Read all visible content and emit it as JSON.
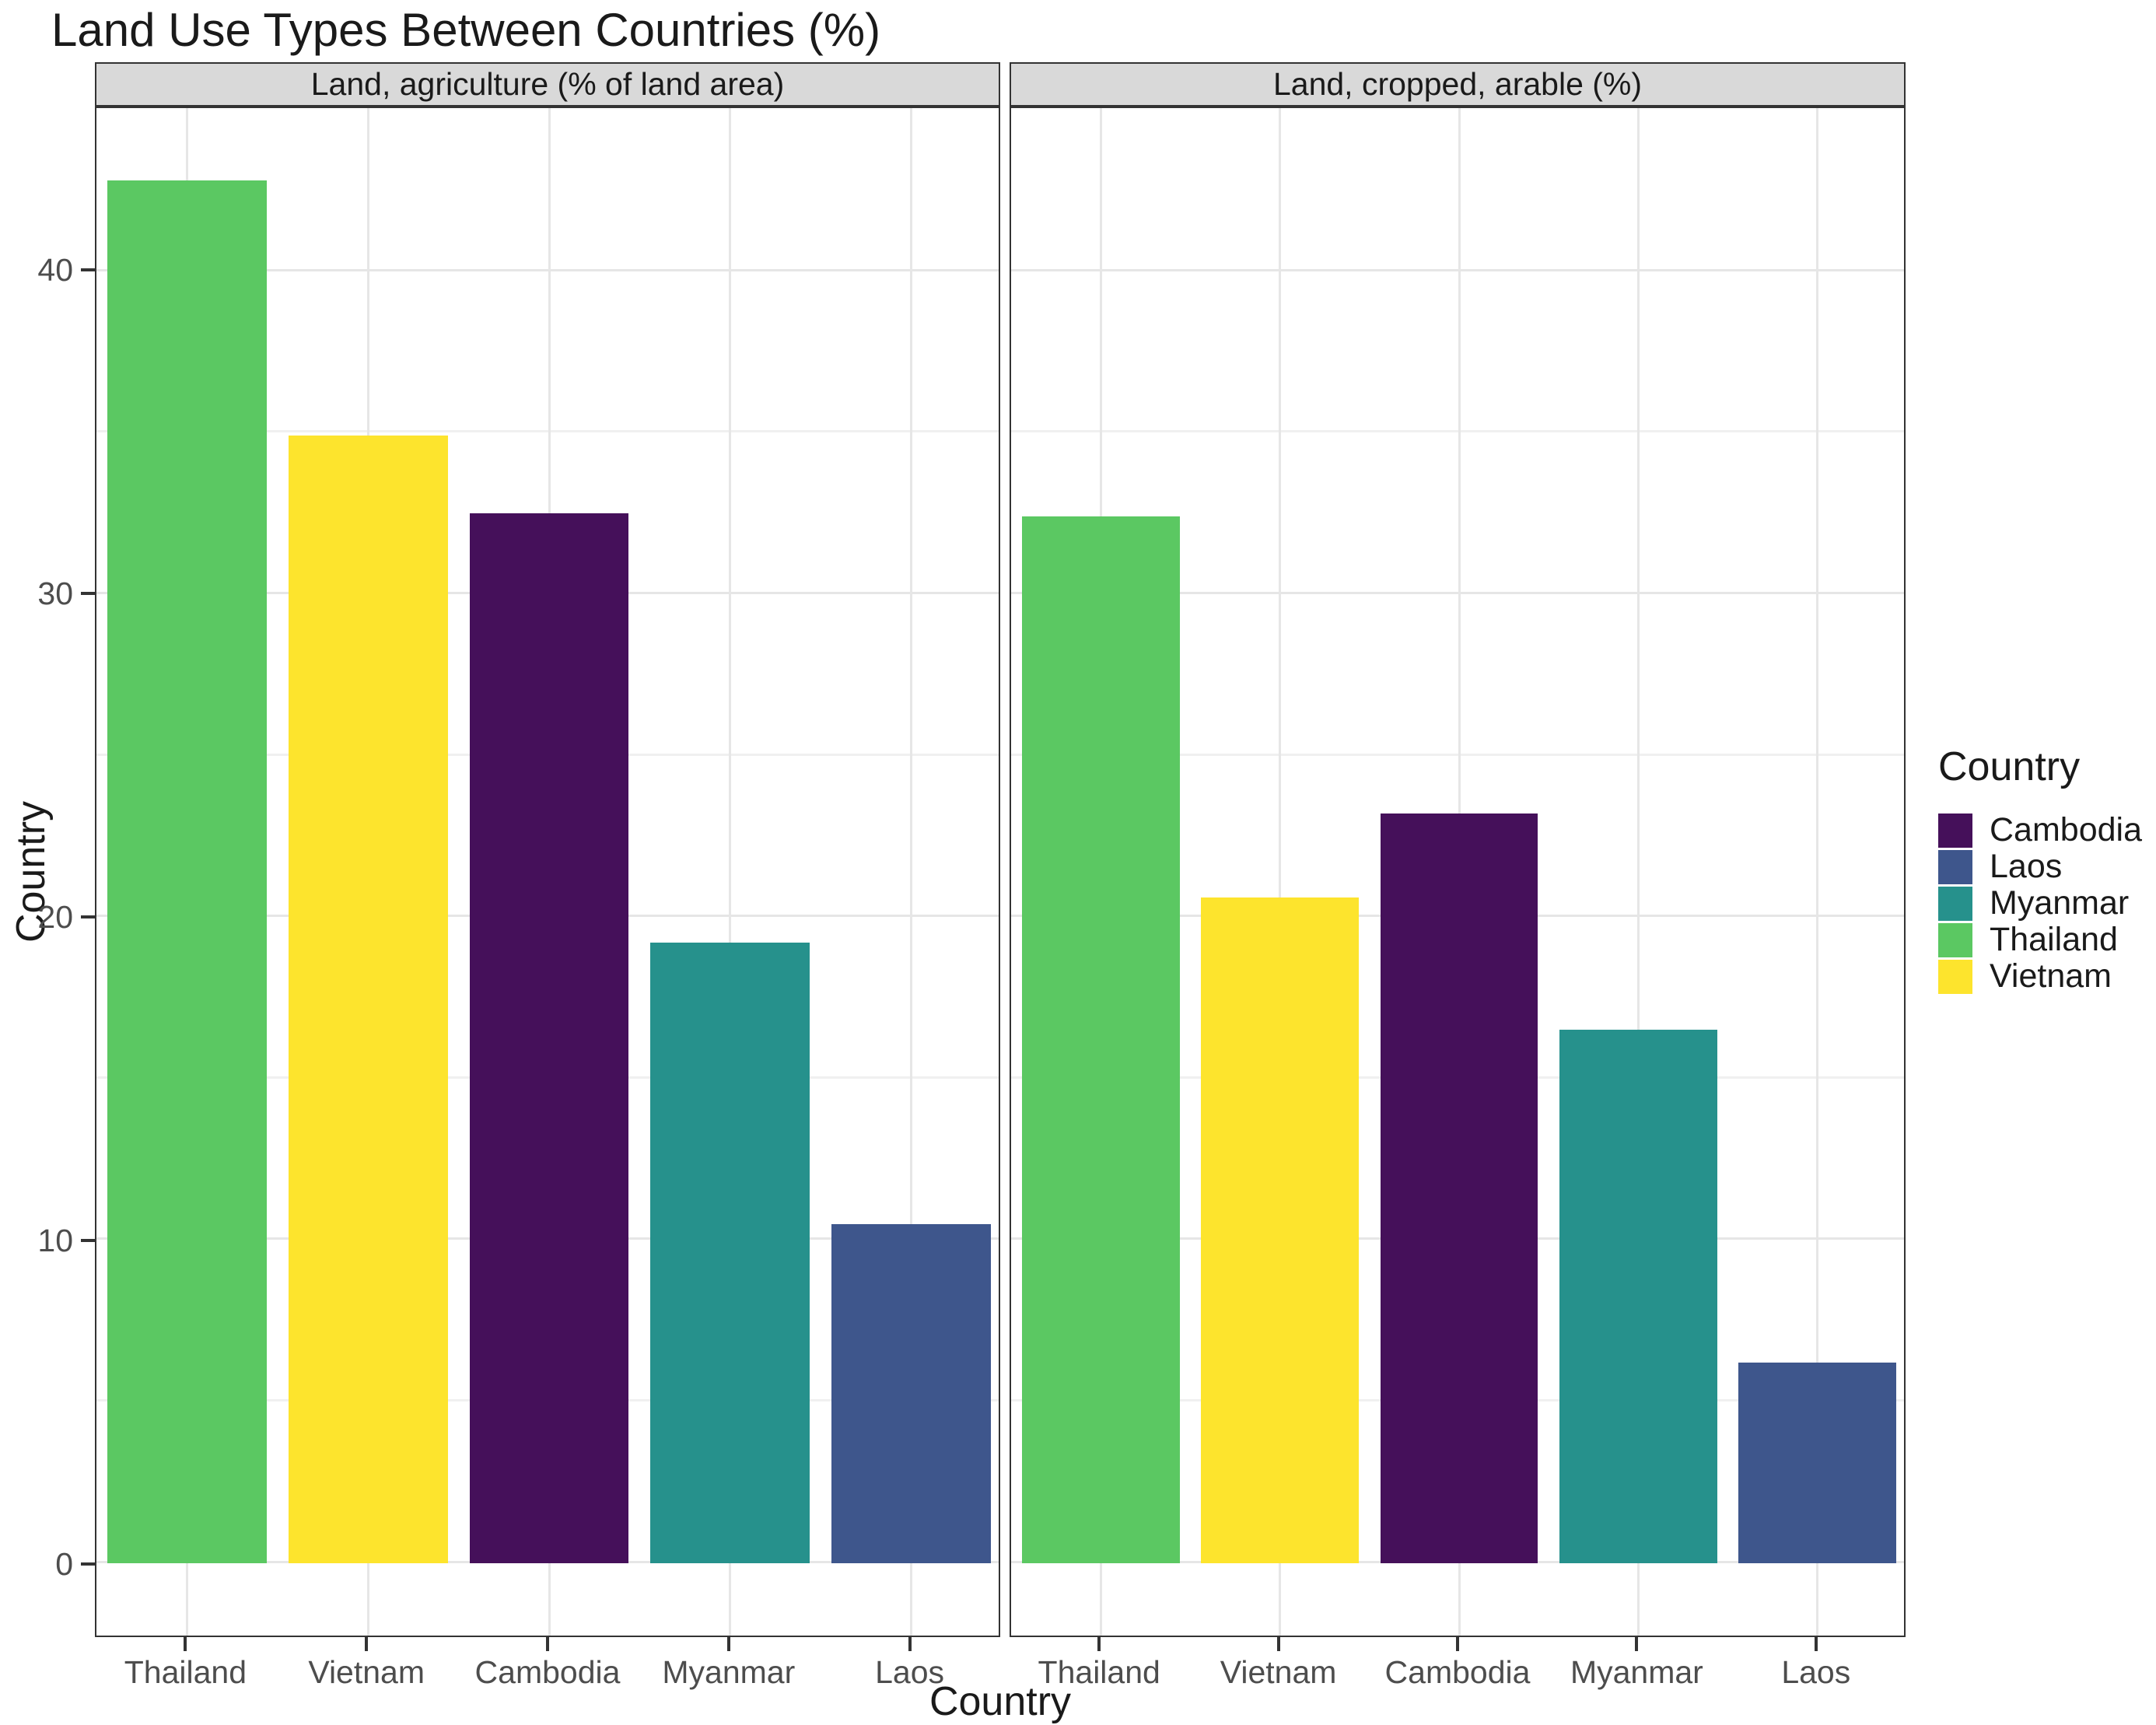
{
  "chart_data": {
    "type": "bar",
    "title": "Land Use Types Between Countries (%)",
    "xlabel": "Country",
    "ylabel": "Country",
    "ylim": [
      -2.25,
      45.05
    ],
    "yticks": [
      0,
      10,
      20,
      30,
      40
    ],
    "yminor": [
      5,
      15,
      25,
      35
    ],
    "grid": true,
    "legend_position": "right",
    "facets": [
      {
        "label": "Land, agriculture (% of land area)",
        "categories": [
          "Thailand",
          "Vietnam",
          "Cambodia",
          "Myanmar",
          "Laos"
        ],
        "values": [
          42.8,
          34.9,
          32.5,
          19.2,
          10.5
        ]
      },
      {
        "label": "Land, cropped, arable (%)",
        "categories": [
          "Thailand",
          "Vietnam",
          "Cambodia",
          "Myanmar",
          "Laos"
        ],
        "values": [
          32.4,
          20.6,
          23.2,
          16.5,
          6.2
        ]
      }
    ],
    "legend": {
      "title": "Country",
      "entries": [
        {
          "label": "Cambodia",
          "color": "#45105a"
        },
        {
          "label": "Laos",
          "color": "#3e568c"
        },
        {
          "label": "Myanmar",
          "color": "#26918c"
        },
        {
          "label": "Thailand",
          "color": "#5bc862"
        },
        {
          "label": "Vietnam",
          "color": "#fde42d"
        }
      ]
    }
  }
}
